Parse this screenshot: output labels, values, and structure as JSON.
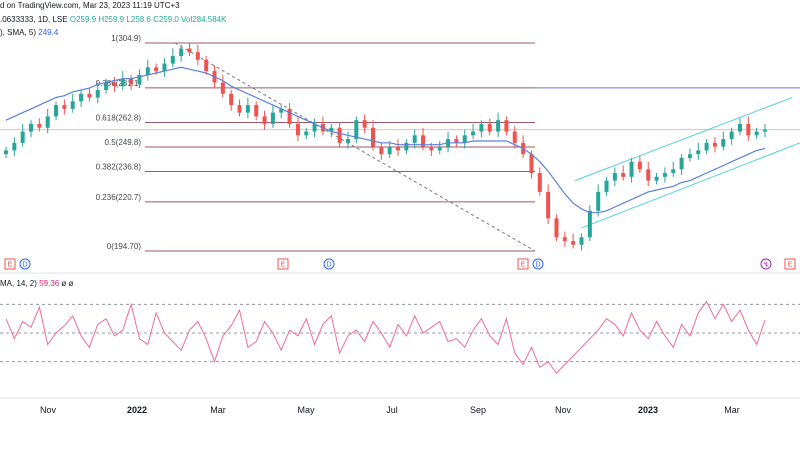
{
  "header": {
    "line1": "d on TradingView.com, Mar 23, 2023 11:19 UTC+3",
    "line2_sym": ".0633333, 1D, LSE",
    "o": "O259.9",
    "h": "H259.9",
    "l": "L258.6",
    "c": "C259.0",
    "vol": "Vol284.584K",
    "sma_label": "), SMA, 5)",
    "sma_value": "249.4",
    "rsi_label": "MA, 14, 2)",
    "rsi_value": "59.36",
    "rsi_extra": "ø ø"
  },
  "colors": {
    "up": "#26a69a",
    "down": "#ef5350",
    "sma": "#5b7fde",
    "fib": "#9c5a66",
    "channel": "#4dd0e1",
    "rsi": "#ef6c95",
    "hline": "#5b7fde"
  },
  "events": [
    {
      "label": "E",
      "kind": "earnings"
    },
    {
      "label": "D",
      "kind": "dividend"
    },
    {
      "label": "E",
      "kind": "earnings"
    },
    {
      "label": "D",
      "kind": "dividend"
    },
    {
      "label": "E",
      "kind": "earnings"
    },
    {
      "label": "D",
      "kind": "dividend"
    },
    {
      "label": "↯",
      "kind": "split"
    },
    {
      "label": "E",
      "kind": "earnings"
    }
  ],
  "chart_data": {
    "type": "candlestick",
    "x_ticks": [
      "Nov",
      "2022",
      "Mar",
      "May",
      "Jul",
      "Sep",
      "Nov",
      "2023",
      "Mar"
    ],
    "bold_ticks": [
      "2022",
      "2023"
    ],
    "fib_levels": [
      {
        "label": "1(304.9)",
        "value": 304.9
      },
      {
        "label": "0.786(281.1)",
        "value": 281.1
      },
      {
        "label": "0.618(262.8)",
        "value": 262.8
      },
      {
        "label": "0.5(249.8)",
        "value": 249.8
      },
      {
        "label": "0.382(236.8)",
        "value": 236.8
      },
      {
        "label": "0.236(220.7)",
        "value": 220.7
      },
      {
        "label": "0(194.70)",
        "value": 194.7
      }
    ],
    "price_close": [
      248,
      252,
      258,
      262,
      260,
      266,
      272,
      270,
      274,
      278,
      276,
      280,
      284,
      282,
      286,
      283,
      288,
      292,
      290,
      294,
      298,
      302,
      300,
      296,
      290,
      284,
      278,
      272,
      268,
      272,
      266,
      262,
      268,
      270,
      262,
      256,
      258,
      262,
      258,
      260,
      252,
      254,
      264,
      260,
      250,
      246,
      250,
      248,
      252,
      256,
      250,
      248,
      250,
      254,
      252,
      256,
      258,
      262,
      258,
      264,
      258,
      252,
      246,
      236,
      226,
      212,
      202,
      200,
      198,
      202,
      216,
      226,
      232,
      236,
      234,
      242,
      238,
      232,
      234,
      236,
      238,
      244,
      246,
      248,
      252,
      250,
      254,
      258,
      262,
      256,
      258,
      259
    ],
    "sma": [
      264,
      266,
      268,
      270,
      272,
      274,
      276,
      277,
      279,
      280,
      281,
      283,
      284,
      285,
      286,
      286,
      287,
      288,
      289,
      290,
      291,
      292,
      291,
      290,
      289,
      287,
      285,
      282,
      280,
      278,
      276,
      274,
      272,
      270,
      268,
      266,
      264,
      262,
      260,
      258,
      257,
      256,
      255,
      254,
      253,
      252,
      252,
      251,
      251,
      251,
      251,
      251,
      251,
      252,
      252,
      252,
      253,
      253,
      253,
      253,
      253,
      251,
      249,
      246,
      242,
      237,
      231,
      225,
      220,
      217,
      215,
      215,
      216,
      218,
      220,
      222,
      224,
      226,
      227,
      228,
      229,
      231,
      232,
      234,
      236,
      238,
      240,
      242,
      244,
      246,
      248,
      249
    ],
    "rsi": [
      60,
      46,
      58,
      54,
      68,
      42,
      50,
      55,
      62,
      48,
      40,
      56,
      60,
      48,
      52,
      70,
      46,
      42,
      64,
      50,
      44,
      38,
      52,
      58,
      46,
      30,
      48,
      55,
      66,
      40,
      44,
      58,
      50,
      38,
      52,
      48,
      60,
      42,
      56,
      62,
      36,
      48,
      52,
      44,
      58,
      50,
      40,
      56,
      48,
      62,
      50,
      54,
      58,
      44,
      46,
      40,
      52,
      60,
      48,
      42,
      60,
      36,
      28,
      40,
      26,
      30,
      22,
      28,
      34,
      40,
      46,
      52,
      60,
      56,
      48,
      64,
      52,
      46,
      58,
      48,
      40,
      56,
      48,
      64,
      72,
      60,
      70,
      58,
      66,
      52,
      42,
      59
    ]
  }
}
